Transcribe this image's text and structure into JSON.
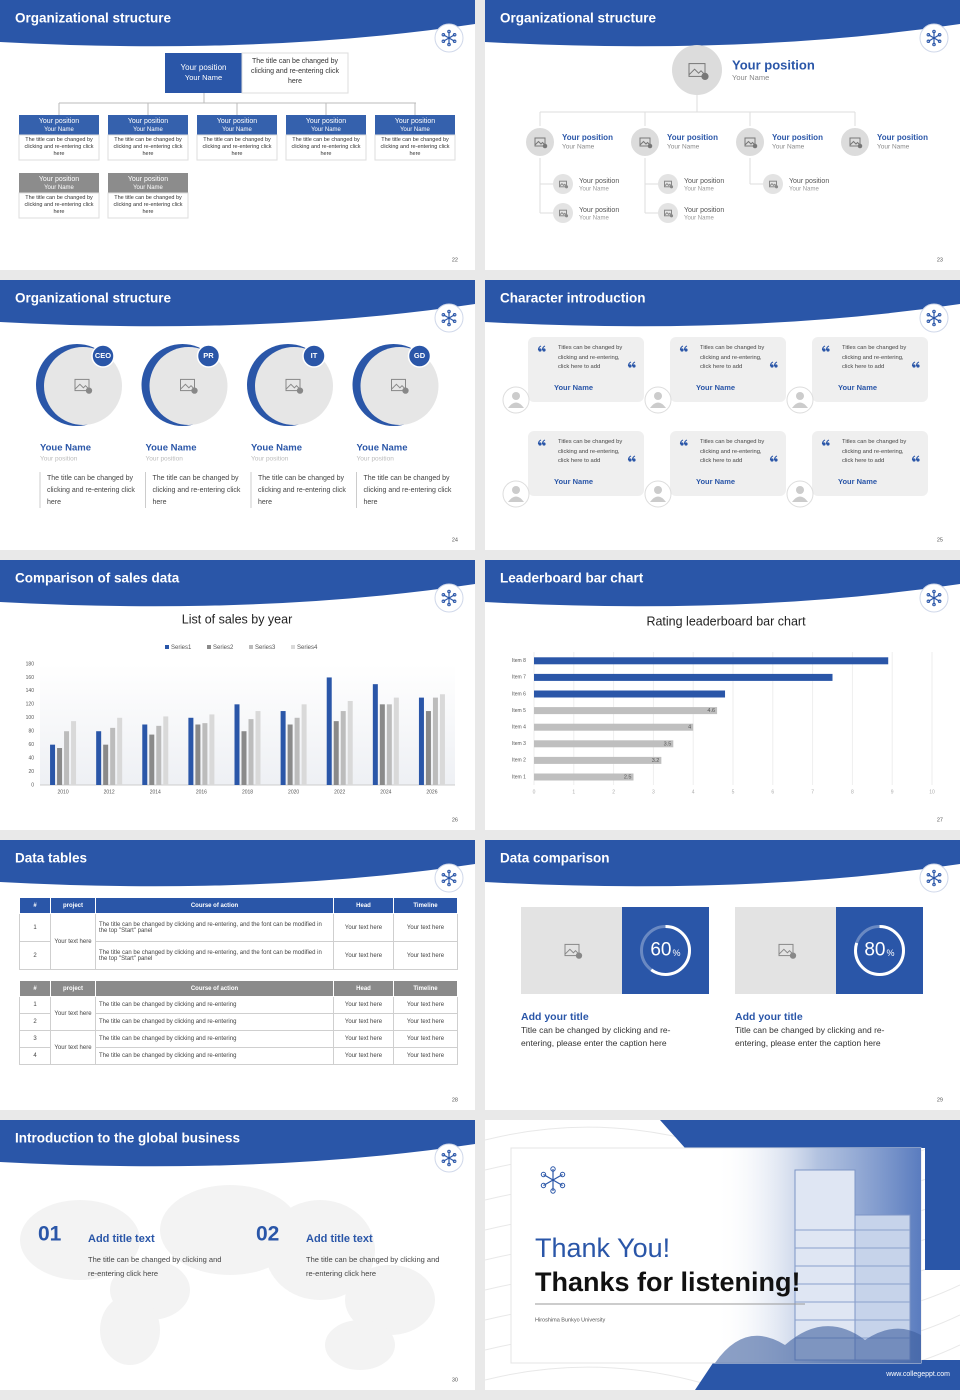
{
  "slides": [
    {
      "title": "Organizational structure",
      "page": "22",
      "top": {
        "position": "Your position",
        "name": "Your Name",
        "text": "The title can be changed by clicking and re-entering click here"
      },
      "boxes": [
        {
          "position": "Your position",
          "name": "Your Name",
          "text": "The title can be changed by clicking and re-entering click here",
          "color": "#3561ad"
        },
        {
          "position": "Your position",
          "name": "Your Name",
          "text": "The title can be changed by clicking and re-entering click here",
          "color": "#3561ad"
        },
        {
          "position": "Your position",
          "name": "Your Name",
          "text": "The title can be changed by clicking and re-entering click here",
          "color": "#3561ad"
        },
        {
          "position": "Your position",
          "name": "Your Name",
          "text": "The title can be changed by clicking and re-entering click here",
          "color": "#3561ad"
        },
        {
          "position": "Your position",
          "name": "Your Name",
          "text": "The title can be changed by clicking and re-entering click here",
          "color": "#3561ad"
        },
        {
          "position": "Your position",
          "name": "Your Name",
          "text": "The title can be changed by clicking and re-entering click here",
          "color": "#8c8c8c"
        },
        {
          "position": "Your position",
          "name": "Your Name",
          "text": "The title can be changed by clicking and re-entering click here",
          "color": "#8c8c8c"
        }
      ]
    },
    {
      "title": "Organizational structure",
      "page": "23",
      "head": {
        "position": "Your position",
        "name": "Your Name"
      },
      "level2": [
        {
          "position": "Your position",
          "name": "Your Name",
          "children": [
            {
              "position": "Your position",
              "name": "Your Name"
            },
            {
              "position": "Your position",
              "name": "Your Name"
            }
          ]
        },
        {
          "position": "Your position",
          "name": "Your Name",
          "children": [
            {
              "position": "Your position",
              "name": "Your Name"
            },
            {
              "position": "Your position",
              "name": "Your Name"
            }
          ]
        },
        {
          "position": "Your position",
          "name": "Your Name",
          "children": [
            {
              "position": "Your position",
              "name": "Your Name"
            }
          ]
        },
        {
          "position": "Your position",
          "name": "Your Name",
          "children": []
        }
      ]
    },
    {
      "title": "Organizational structure",
      "page": "24",
      "people": [
        {
          "badge": "CEO",
          "name": "Youe Name",
          "position": "Your position",
          "text": "The title can be changed by clicking and re-entering click here"
        },
        {
          "badge": "PR",
          "name": "Youe Name",
          "position": "Your position",
          "text": "The title can be changed by clicking and re-entering click here"
        },
        {
          "badge": "IT",
          "name": "Youe Name",
          "position": "Your position",
          "text": "The title can be changed by clicking and re-entering click here"
        },
        {
          "badge": "GD",
          "name": "Youe Name",
          "position": "Your position",
          "text": "The title can be changed by clicking and re-entering click here"
        }
      ]
    },
    {
      "title": "Character introduction",
      "page": "25",
      "cards": [
        {
          "quote": "Titles can be changed by clicking and re-entering, click here to add",
          "name": "Your Name"
        },
        {
          "quote": "Titles can be changed by clicking and re-entering, click here to add",
          "name": "Your Name"
        },
        {
          "quote": "Titles can be changed by clicking and re-entering, click here to add",
          "name": "Your Name"
        },
        {
          "quote": "Titles can be changed by clicking and re-entering, click here to add",
          "name": "Your Name"
        },
        {
          "quote": "Titles can be changed by clicking and re-entering, click here to add",
          "name": "Your Name"
        },
        {
          "quote": "Titles can be changed by clicking and re-entering, click here to add",
          "name": "Your Name"
        }
      ]
    },
    {
      "title": "Comparison of sales data",
      "page": "26",
      "chart": {
        "type": "bar",
        "title": "List of sales by year",
        "categories": [
          "2010",
          "2012",
          "2014",
          "2016",
          "2018",
          "2020",
          "2022",
          "2024",
          "2026"
        ],
        "series": [
          {
            "name": "Series1",
            "color": "#2a56a8",
            "values": [
              60,
              80,
              90,
              100,
              120,
              110,
              160,
              150,
              130
            ]
          },
          {
            "name": "Series2",
            "color": "#8a8a8a",
            "values": [
              55,
              60,
              75,
              90,
              80,
              90,
              95,
              120,
              110
            ]
          },
          {
            "name": "Series3",
            "color": "#bcbcbc",
            "values": [
              80,
              85,
              88,
              92,
              98,
              100,
              110,
              120,
              130
            ]
          },
          {
            "name": "Series4",
            "color": "#d9d9d9",
            "values": [
              95,
              100,
              102,
              105,
              110,
              120,
              125,
              130,
              135
            ]
          }
        ],
        "ylim": [
          0,
          180
        ],
        "yticks": [
          0,
          20,
          40,
          60,
          80,
          100,
          120,
          140,
          160,
          180
        ],
        "grid": false
      }
    },
    {
      "title": "Leaderboard bar chart",
      "page": "27",
      "chart": {
        "type": "barh",
        "title": "Rating leaderboard bar chart",
        "categories": [
          "Item 1",
          "Item 2",
          "Item 3",
          "Item 4",
          "Item 5",
          "Item 6",
          "Item 7",
          "Item 8"
        ],
        "values": [
          2.5,
          3.2,
          3.5,
          4,
          4.6,
          4.8,
          7.5,
          8.9
        ],
        "value_labels": [
          "2.5",
          "3.2",
          "3.5",
          "4",
          "4.6",
          null,
          null,
          null
        ],
        "colors": [
          "#bfbfbf",
          "#bfbfbf",
          "#bfbfbf",
          "#bfbfbf",
          "#bfbfbf",
          "#2a56a8",
          "#2a56a8",
          "#2a56a8"
        ],
        "xlim": [
          0,
          10
        ],
        "xticks": [
          0,
          1,
          2,
          3,
          4,
          5,
          6,
          7,
          8,
          9,
          10
        ],
        "grid": true
      }
    },
    {
      "title": "Data tables",
      "page": "28",
      "tables": [
        {
          "header": [
            "#",
            "project",
            "Course of action",
            "Head",
            "Timeline"
          ],
          "header_color": "#2a56a8",
          "rows": [
            [
              "1",
              "Your text here",
              "The title can be changed by clicking and re-entering, and the font can be modified in the top \"Start\" panel",
              "Your text here",
              "Your text here"
            ],
            [
              "2",
              null,
              "The title can be changed by clicking and re-entering, and the font can be modified in the top \"Start\" panel",
              "Your text here",
              "Your text here"
            ]
          ]
        },
        {
          "header": [
            "#",
            "project",
            "Course of action",
            "Head",
            "Timeline"
          ],
          "header_color": "#8a8a8a",
          "rows": [
            [
              "1",
              "Your text here",
              "The title can be changed by clicking and re-entering",
              "Your text here",
              "Your text here"
            ],
            [
              "2",
              null,
              "The title can be changed by clicking and re-entering",
              "Your text here",
              "Your text here"
            ],
            [
              "3",
              "Your text here",
              "The title can be changed by clicking and re-entering",
              "Your text here",
              "Your text here"
            ],
            [
              "4",
              null,
              "The title can be changed by clicking and re-entering",
              "Your text here",
              "Your text here"
            ]
          ]
        }
      ]
    },
    {
      "title": "Data comparison",
      "page": "29",
      "stats": [
        {
          "value": 60,
          "unit": "%",
          "title": "Add your title",
          "text": "Title can be changed by clicking and re-entering, please enter the caption here"
        },
        {
          "value": 80,
          "unit": "%",
          "title": "Add your title",
          "text": "Title can be changed by clicking and re-entering, please enter the caption here"
        }
      ]
    },
    {
      "title": "Introduction to the global business",
      "page": "30",
      "items": [
        {
          "number": "01",
          "title": "Add title text",
          "text": "The title can be changed by clicking and re-entering click here"
        },
        {
          "number": "02",
          "title": "Add title text",
          "text": "The title can be changed by clicking and re-entering click here"
        }
      ]
    },
    {
      "thanks": "Thank You!",
      "subtitle": "Thanks for listening!",
      "university": "Hiroshima Bunkyo University",
      "website": "www.collegeppt.com"
    }
  ]
}
